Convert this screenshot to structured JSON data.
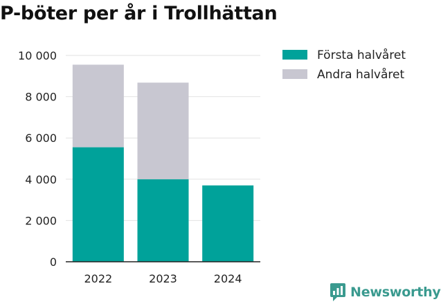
{
  "chart_data": {
    "type": "bar",
    "stacked": true,
    "title": "P-böter per år i Trollhättan",
    "categories": [
      "2022",
      "2023",
      "2024"
    ],
    "series": [
      {
        "name": "Första halvåret",
        "color": "#00a29a",
        "values": [
          5550,
          4000,
          3700
        ]
      },
      {
        "name": "Andra halvåret",
        "color": "#c8c7d1",
        "values": [
          4000,
          4680,
          0
        ]
      }
    ],
    "ylim": [
      0,
      10000
    ],
    "yticks": [
      0,
      2000,
      4000,
      6000,
      8000,
      10000
    ],
    "ytick_labels": [
      "0",
      "2 000",
      "4 000",
      "6 000",
      "8 000",
      "10 000"
    ],
    "grid": true,
    "legend_position": "right"
  },
  "branding": {
    "logo_text": "Newsworthy",
    "logo_icon": "newsworthy-bar-icon",
    "color": "#3a9a8f"
  }
}
